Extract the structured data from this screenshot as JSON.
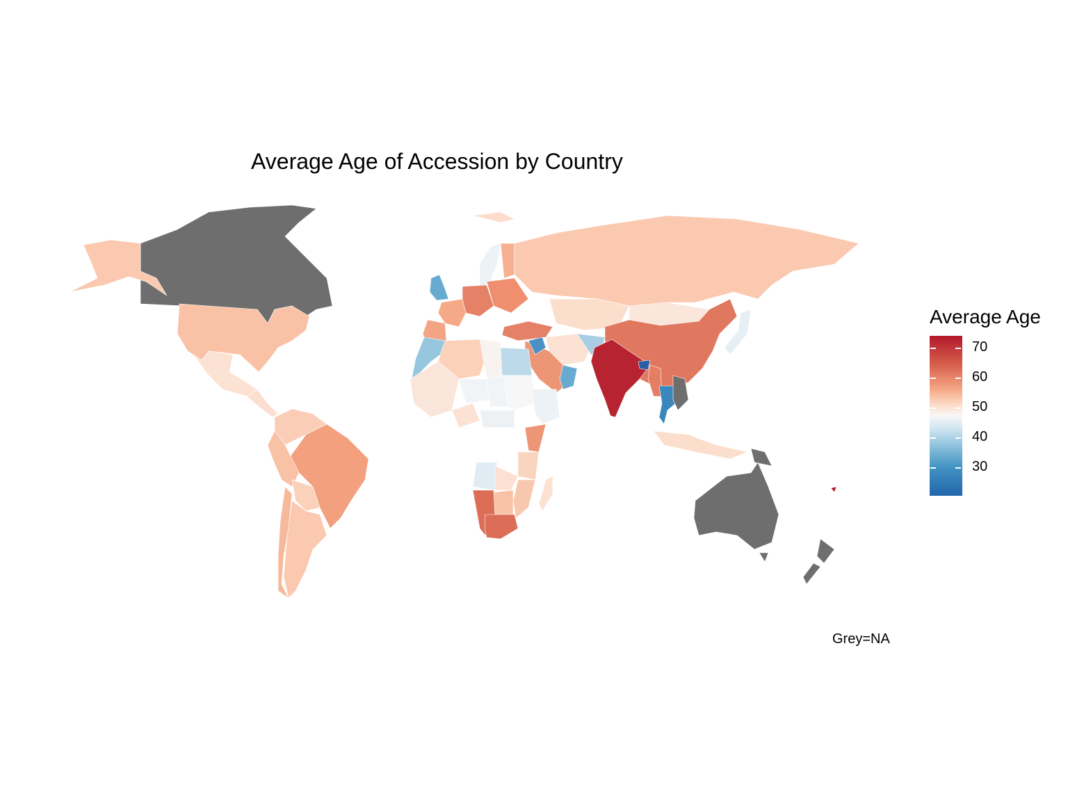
{
  "title": "Average Age of Accession by Country",
  "legend": {
    "title": "Average Age",
    "ticks": [
      "70",
      "60",
      "50",
      "40",
      "30"
    ],
    "colors": [
      "#b2182b",
      "#d6604d",
      "#f4a582",
      "#fddbc7",
      "#f7f7f7",
      "#d1e5f0",
      "#92c5de",
      "#4393c3",
      "#2166ac"
    ]
  },
  "caption": "Grey=NA",
  "na_color": "#6e6e6e",
  "chart_data": {
    "type": "choropleth",
    "title": "Average Age of Accession by Country",
    "legend_title": "Average Age",
    "scale_ticks": [
      30,
      40,
      50,
      60,
      70
    ],
    "scale_range": [
      20,
      74
    ],
    "na_label": "Grey=NA",
    "regions": [
      {
        "name": "Canada",
        "value": null
      },
      {
        "name": "Australia",
        "value": null
      },
      {
        "name": "New Zealand",
        "value": null
      },
      {
        "name": "Papua New Guinea",
        "value": null
      },
      {
        "name": "United States",
        "value": 57
      },
      {
        "name": "Alaska",
        "value": 56
      },
      {
        "name": "Mexico",
        "value": 52
      },
      {
        "name": "Brazil",
        "value": 61
      },
      {
        "name": "Argentina",
        "value": 56
      },
      {
        "name": "Chile",
        "value": 58
      },
      {
        "name": "Peru",
        "value": 57
      },
      {
        "name": "Bolivia",
        "value": 55
      },
      {
        "name": "Russia",
        "value": 56
      },
      {
        "name": "China",
        "value": 65
      },
      {
        "name": "India",
        "value": 73
      },
      {
        "name": "Mongolia",
        "value": 51
      },
      {
        "name": "Kazakhstan",
        "value": 53
      },
      {
        "name": "Saudi Arabia",
        "value": 62
      },
      {
        "name": "Egypt",
        "value": 38
      },
      {
        "name": "Libya",
        "value": 48
      },
      {
        "name": "Algeria",
        "value": 55
      },
      {
        "name": "Morocco",
        "value": 34
      },
      {
        "name": "Niger",
        "value": 46
      },
      {
        "name": "Chad",
        "value": 46
      },
      {
        "name": "Sudan",
        "value": 47
      },
      {
        "name": "Ethiopia",
        "value": 45
      },
      {
        "name": "South Africa",
        "value": 66
      },
      {
        "name": "Namibia",
        "value": 66
      },
      {
        "name": "Botswana",
        "value": 57
      },
      {
        "name": "Angola",
        "value": 43
      },
      {
        "name": "Kenya",
        "value": 62
      },
      {
        "name": "Madagascar",
        "value": 52
      },
      {
        "name": "Thailand",
        "value": 25
      },
      {
        "name": "Japan",
        "value": 44
      },
      {
        "name": "Turkey",
        "value": 64
      },
      {
        "name": "Iran",
        "value": 52
      },
      {
        "name": "United Kingdom",
        "value": 30
      },
      {
        "name": "France",
        "value": 60
      },
      {
        "name": "Germany",
        "value": 64
      },
      {
        "name": "Sweden",
        "value": 45
      },
      {
        "name": "Finland",
        "value": 59
      },
      {
        "name": "Indonesia",
        "value": 53
      },
      {
        "name": "Oman",
        "value": 30
      }
    ]
  }
}
